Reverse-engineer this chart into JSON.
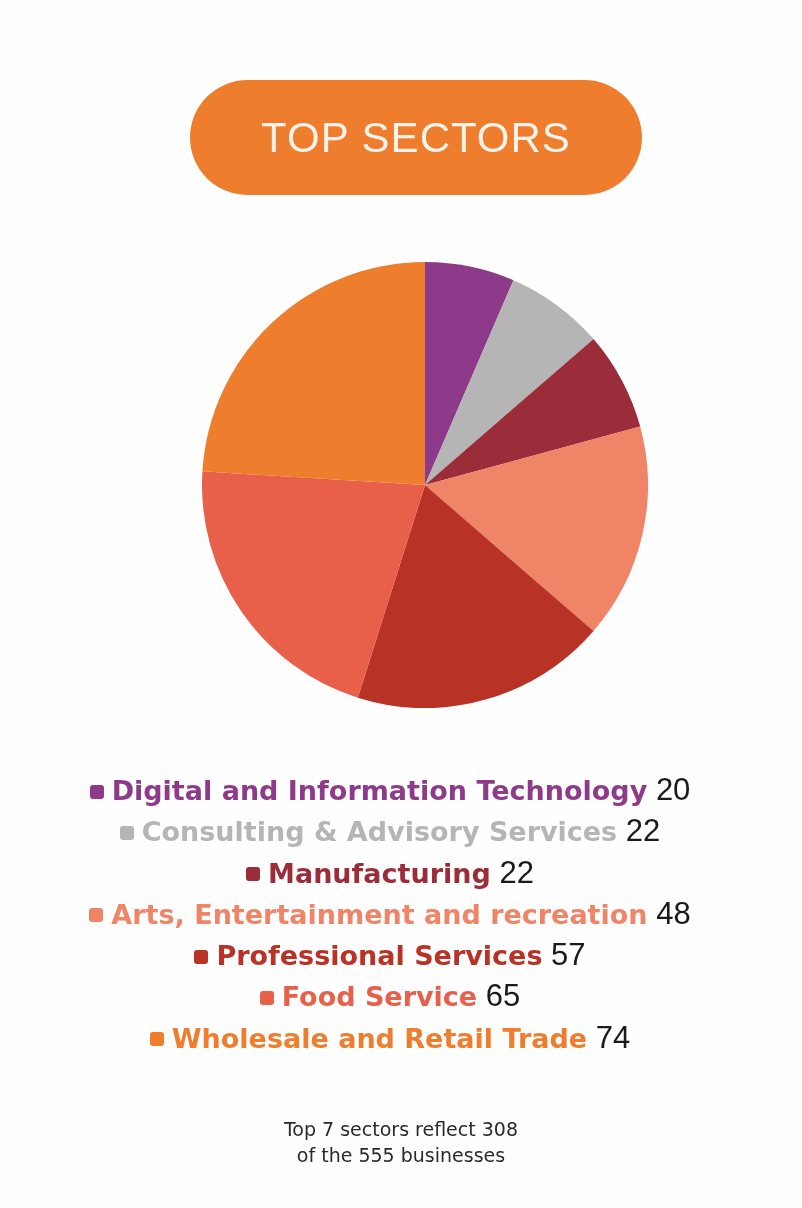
{
  "chart_data": {
    "type": "pie",
    "title": "TOP SECTORS",
    "categories": [
      "Digital and Information Technology",
      "Consulting & Advisory Services",
      "Manufacturing",
      "Arts, Entertainment and recreation",
      "Professional Services",
      "Food Service",
      "Wholesale and Retail Trade"
    ],
    "values": [
      20,
      22,
      22,
      48,
      57,
      65,
      74
    ],
    "colors": [
      "#8e3a8a",
      "#b5b5b5",
      "#9b2d3a",
      "#ef8466",
      "#b83326",
      "#e8604a",
      "#ee7d2e"
    ],
    "legend": "bottom",
    "data_labels": true,
    "annotations": [
      "Top 7 sectors reflect 308 of the 555 businesses"
    ]
  }
}
